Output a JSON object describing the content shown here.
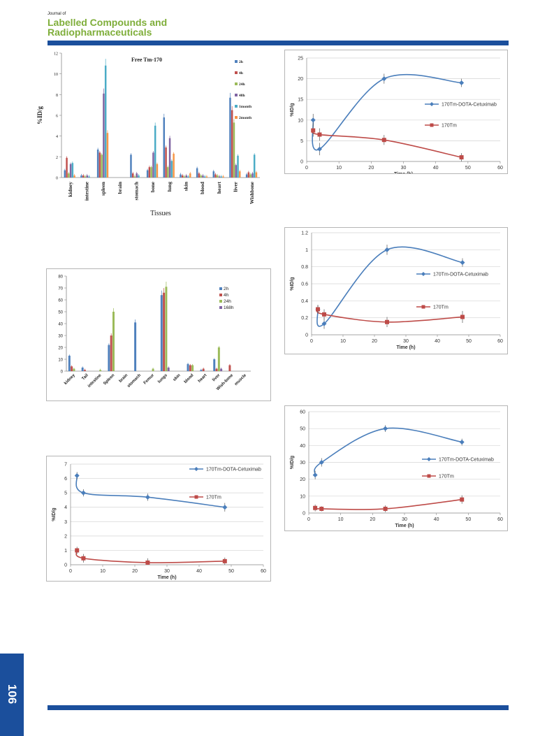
{
  "journal": {
    "prefix": "Journal of",
    "title_line1": "Labelled Compounds and",
    "title_line2": "Radiopharmaceuticals"
  },
  "page_number": "106",
  "colors": {
    "brand_blue": "#1b4f9c",
    "brand_green": "#7fae3a",
    "series_cetuximab": "#4a7ebb",
    "series_tm": "#be4b48"
  },
  "chart_data": [
    {
      "id": "fig_a",
      "type": "bar",
      "title": "Free Tm-170",
      "xlabel": "Tissues",
      "ylabel": "%ID/g",
      "ylim": [
        0,
        12
      ],
      "yticks": [
        "0",
        "2",
        "4",
        "6",
        "8",
        "10",
        "12"
      ],
      "grid": false,
      "legend_position": "top-right",
      "categories": [
        "kidney",
        "intestine",
        "spleen",
        "brain",
        "stomach",
        "bone",
        "lung",
        "skin",
        "blood",
        "heart",
        "liver",
        "Wishbone"
      ],
      "series": [
        {
          "name": "2h",
          "color": "#4f81bd",
          "values": [
            0.7,
            0.2,
            2.7,
            0,
            2.2,
            0.7,
            5.8,
            0.3,
            0.9,
            0.6,
            7.7,
            0.3
          ]
        },
        {
          "name": "4h",
          "color": "#c0504d",
          "values": [
            1.9,
            0.2,
            2.4,
            0,
            0.4,
            1.0,
            2.9,
            0.2,
            0.4,
            0.3,
            6.5,
            0.5
          ]
        },
        {
          "name": "24h",
          "color": "#9bbb59",
          "values": [
            0.4,
            0.1,
            2.2,
            0,
            0.1,
            1.0,
            1.0,
            0.1,
            0.2,
            0.2,
            5.3,
            0.3
          ]
        },
        {
          "name": "48h",
          "color": "#8064a2",
          "values": [
            1.3,
            0.2,
            8.1,
            0,
            0.4,
            2.4,
            3.8,
            0.2,
            0.2,
            0.1,
            1.2,
            0.4
          ]
        },
        {
          "name": "1month",
          "color": "#4bacc6",
          "values": [
            1.4,
            0.1,
            10.8,
            0,
            0.2,
            5.0,
            1.6,
            0.1,
            0.1,
            0.1,
            2.1,
            2.2
          ]
        },
        {
          "name": "2month",
          "color": "#f79646",
          "values": [
            0.2,
            0.0,
            4.3,
            0,
            0.0,
            1.3,
            2.3,
            0.4,
            0.1,
            0.1,
            0.6,
            0.5
          ]
        }
      ]
    },
    {
      "id": "fig_b",
      "type": "bar",
      "title": "",
      "xlabel": "",
      "ylabel": "",
      "ylim": [
        0,
        80
      ],
      "yticks": [
        "0",
        "10",
        "20",
        "30",
        "40",
        "50",
        "60",
        "70",
        "80"
      ],
      "grid": false,
      "legend_position": "top-right",
      "categories": [
        "kidney",
        "Tail",
        "intestine",
        "Spleen",
        "brain",
        "stomach",
        "Femur",
        "lungs",
        "skin",
        "blood",
        "heart",
        "liver",
        "Wish-bone",
        "muscle"
      ],
      "series": [
        {
          "name": "2h",
          "color": "#4f81bd",
          "values": [
            13,
            3,
            0,
            22,
            0,
            41,
            0,
            64,
            0,
            6,
            1,
            10,
            0,
            0
          ]
        },
        {
          "name": "4h",
          "color": "#c0504d",
          "values": [
            4,
            1,
            0,
            30,
            0,
            0,
            0,
            66,
            0,
            5,
            2,
            2,
            5,
            0
          ]
        },
        {
          "name": "24h",
          "color": "#9bbb59",
          "values": [
            2,
            0,
            1,
            50,
            0,
            0,
            2,
            71,
            0,
            5,
            0,
            20,
            0,
            0
          ]
        },
        {
          "name": "168h",
          "color": "#8064a2",
          "values": [
            0,
            0,
            0,
            0,
            0,
            0,
            0,
            3,
            0,
            0,
            0,
            2,
            0,
            0
          ]
        }
      ]
    },
    {
      "id": "fig_c",
      "type": "line",
      "xlabel": "Time (h)",
      "ylabel": "%ID/g",
      "xlim": [
        0,
        60
      ],
      "ylim": [
        0,
        25
      ],
      "xticks": [
        "0",
        "10",
        "20",
        "30",
        "40",
        "50",
        "60"
      ],
      "yticks": [
        "0",
        "5",
        "10",
        "15",
        "20",
        "25"
      ],
      "grid": true,
      "legend_position": "right",
      "series": [
        {
          "name": "170Tm-DOTA-Cetuximab",
          "color": "#4a7ebb",
          "marker": "diamond",
          "x": [
            2,
            4,
            24,
            48
          ],
          "y": [
            10,
            3,
            20,
            19
          ],
          "err": [
            1.5,
            1.5,
            1.2,
            1.0
          ]
        },
        {
          "name": "170Tm",
          "color": "#be4b48",
          "marker": "square",
          "x": [
            2,
            4,
            24,
            48
          ],
          "y": [
            7.5,
            6.5,
            5.2,
            1.0
          ],
          "err": [
            1.5,
            1.5,
            1.2,
            1.0
          ]
        }
      ]
    },
    {
      "id": "fig_d",
      "type": "line",
      "xlabel": "Time (h)",
      "ylabel": "%ID/g",
      "xlim": [
        0,
        60
      ],
      "ylim": [
        0,
        1.2
      ],
      "xticks": [
        "0",
        "10",
        "20",
        "30",
        "40",
        "50",
        "60"
      ],
      "yticks": [
        "0",
        "0.2",
        "0.4",
        "0.6",
        "0.8",
        "1",
        "1.2"
      ],
      "grid": true,
      "legend_position": "right",
      "series": [
        {
          "name": "170Tm-DOTA-Cetuximab",
          "color": "#4a7ebb",
          "marker": "diamond",
          "x": [
            2,
            4,
            24,
            48
          ],
          "y": [
            0.3,
            0.13,
            1.0,
            0.85
          ],
          "err": [
            0.05,
            0.06,
            0.06,
            0.05
          ]
        },
        {
          "name": "170Tm",
          "color": "#be4b48",
          "marker": "square",
          "x": [
            2,
            4,
            24,
            48
          ],
          "y": [
            0.3,
            0.24,
            0.15,
            0.21
          ],
          "err": [
            0.05,
            0.06,
            0.06,
            0.07
          ]
        }
      ]
    },
    {
      "id": "fig_e",
      "type": "line",
      "xlabel": "Time (h)",
      "ylabel": "%ID/g",
      "xlim": [
        0,
        60
      ],
      "ylim": [
        0,
        7
      ],
      "xticks": [
        "0",
        "10",
        "20",
        "30",
        "40",
        "50",
        "60"
      ],
      "yticks": [
        "0",
        "1",
        "2",
        "3",
        "4",
        "5",
        "6",
        "7"
      ],
      "grid": true,
      "legend_position": "top-right",
      "series": [
        {
          "name": "170Tm-DOTA-Cetuximab",
          "color": "#4a7ebb",
          "marker": "diamond",
          "x": [
            2,
            4,
            24,
            48
          ],
          "y": [
            6.2,
            5.0,
            4.7,
            4.0
          ],
          "err": [
            0.25,
            0.25,
            0.25,
            0.3
          ]
        },
        {
          "name": "170Tm",
          "color": "#be4b48",
          "marker": "square",
          "x": [
            2,
            4,
            24,
            48
          ],
          "y": [
            1.0,
            0.45,
            0.15,
            0.25
          ],
          "err": [
            0.25,
            0.3,
            0.3,
            0.25
          ]
        }
      ]
    },
    {
      "id": "fig_f",
      "type": "line",
      "xlabel": "Time (h)",
      "ylabel": "%ID/g",
      "xlim": [
        0,
        60
      ],
      "ylim": [
        0,
        60
      ],
      "xticks": [
        "0",
        "10",
        "20",
        "30",
        "40",
        "50",
        "60"
      ],
      "yticks": [
        "0",
        "10",
        "20",
        "30",
        "40",
        "50",
        "60"
      ],
      "grid": true,
      "legend_position": "right",
      "series": [
        {
          "name": "170Tm-DOTA-Cetuximab",
          "color": "#4a7ebb",
          "marker": "diamond",
          "x": [
            2,
            4,
            24,
            48
          ],
          "y": [
            22.5,
            30,
            50,
            42
          ],
          "err": [
            2.5,
            2.5,
            2.0,
            2.0
          ]
        },
        {
          "name": "170Tm",
          "color": "#be4b48",
          "marker": "square",
          "x": [
            2,
            4,
            24,
            48
          ],
          "y": [
            3,
            2.5,
            2.5,
            8
          ],
          "err": [
            2.0,
            1.5,
            2.0,
            2.5
          ]
        }
      ]
    }
  ]
}
